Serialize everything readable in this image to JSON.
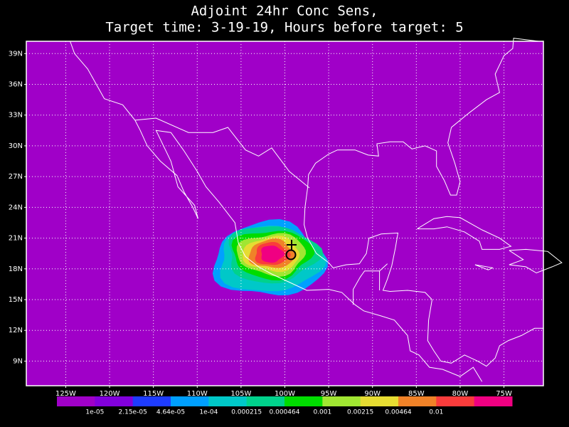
{
  "title": [
    "Adjoint 24hr Conc Sens,",
    "Target time: 3-19-19, Hours before target: 5"
  ],
  "map": {
    "lon_range": [
      -129.5,
      -70.5
    ],
    "lat_range": [
      6.6,
      40.2
    ],
    "background": "#a000c8",
    "lat_ticks": [
      {
        "value": 39,
        "label": "39N"
      },
      {
        "value": 36,
        "label": "36N"
      },
      {
        "value": 33,
        "label": "33N"
      },
      {
        "value": 30,
        "label": "30N"
      },
      {
        "value": 27,
        "label": "27N"
      },
      {
        "value": 24,
        "label": "24N"
      },
      {
        "value": 21,
        "label": "21N"
      },
      {
        "value": 18,
        "label": "18N"
      },
      {
        "value": 15,
        "label": "15N"
      },
      {
        "value": 12,
        "label": "12N"
      },
      {
        "value": 9,
        "label": "9N"
      }
    ],
    "lon_ticks": [
      {
        "value": -125,
        "label": "125W"
      },
      {
        "value": -120,
        "label": "120W"
      },
      {
        "value": -115,
        "label": "115W"
      },
      {
        "value": -110,
        "label": "110W"
      },
      {
        "value": -105,
        "label": "105W"
      },
      {
        "value": -100,
        "label": "100W"
      },
      {
        "value": -95,
        "label": "95W"
      },
      {
        "value": -90,
        "label": "90W"
      },
      {
        "value": -85,
        "label": "85W"
      },
      {
        "value": -80,
        "label": "80W"
      },
      {
        "value": -75,
        "label": "75W"
      }
    ]
  },
  "colorbar": {
    "colors": [
      "#a000c8",
      "#8200dc",
      "#1e3cff",
      "#00a0ff",
      "#00c8c8",
      "#00d28c",
      "#00dc00",
      "#a0e632",
      "#e6dc32",
      "#f08228",
      "#fa3c3c",
      "#f00082"
    ],
    "levels": [
      {
        "value": 1e-05,
        "label": "1e-05"
      },
      {
        "value": 2.15e-05,
        "label": "2.15e-05"
      },
      {
        "value": 4.64e-05,
        "label": "4.64e-05"
      },
      {
        "value": 0.0001,
        "label": "1e-04"
      },
      0.000215,
      0.000464,
      0.001,
      0.00215,
      0.00464,
      0.01
    ]
  }
}
